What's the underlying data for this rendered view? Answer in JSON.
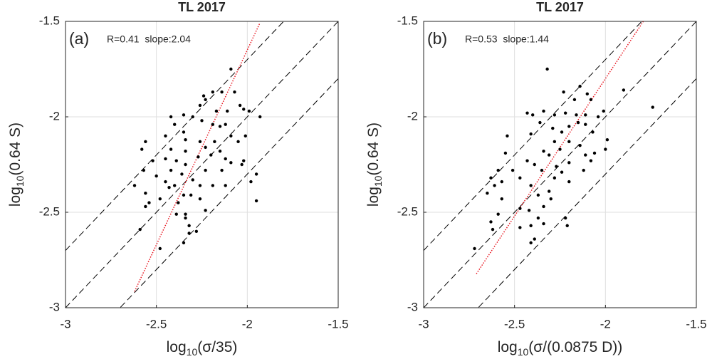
{
  "chart_data": [
    {
      "type": "scatter",
      "title": "TL 2017",
      "panel_label": "(a)",
      "annotation": "R=0.41  slope:2.04",
      "xlabel": {
        "text": "log",
        "sub": "10",
        "rest": "(σ/35)"
      },
      "ylabel": {
        "text": "log",
        "sub": "10",
        "rest": "(0.64 S)"
      },
      "xlim": [
        -3,
        -1.5
      ],
      "ylim": [
        -3,
        -1.5
      ],
      "xticks": [
        -3,
        -2.5,
        -2,
        -1.5
      ],
      "yticks": [
        -3,
        -2.5,
        -2,
        -1.5
      ],
      "grid": true,
      "reference_lines": [
        {
          "slope": 1,
          "intercept": 0.3
        },
        {
          "slope": 1,
          "intercept": 0
        },
        {
          "slope": 1,
          "intercept": -0.3
        }
      ],
      "fit": {
        "slope": 2.04,
        "intercept": 2.43,
        "x_range": [
          -2.62,
          -1.93
        ],
        "color": "#e8141e"
      },
      "color": "#000000",
      "x": [
        -2.09,
        -2.07,
        -2.14,
        -2.23,
        -2.26,
        -2.17,
        -2.11,
        -2.02,
        -1.99,
        -1.93,
        -2.3,
        -2.35,
        -2.42,
        -2.4,
        -2.35,
        -2.25,
        -2.19,
        -2.12,
        -2.09,
        -2.05,
        -2.01,
        -2.18,
        -2.26,
        -2.34,
        -2.42,
        -2.45,
        -2.52,
        -2.39,
        -2.34,
        -2.27,
        -2.23,
        -2.2,
        -2.15,
        -2.12,
        -2.23,
        -2.14,
        -2.09,
        -2.02,
        -1.95,
        -1.98,
        -2.34,
        -2.42,
        -2.45,
        -2.5,
        -2.4,
        -2.36,
        -2.3,
        -2.26,
        -2.19,
        -2.12,
        -2.26,
        -2.35,
        -2.38,
        -2.34,
        -2.39,
        -2.34,
        -2.32,
        -2.28,
        -2.32,
        -2.23,
        -2.48,
        -2.56,
        -2.54,
        -2.62,
        -2.56,
        -2.58,
        -2.57,
        -2.56,
        -2.59,
        -2.48,
        -2.35,
        -1.95,
        -2.03,
        -2.24,
        -2.19,
        -2.04,
        -2.43,
        -2.31,
        -2.45,
        -2.15
      ],
      "y": [
        -1.75,
        -1.87,
        -1.87,
        -1.91,
        -1.94,
        -1.97,
        -1.97,
        -1.96,
        -1.97,
        -2.0,
        -2.0,
        -1.99,
        -2.0,
        -2.04,
        -2.08,
        -2.02,
        -2.04,
        -2.04,
        -2.1,
        -2.13,
        -2.1,
        -2.13,
        -2.13,
        -2.12,
        -2.17,
        -2.22,
        -2.23,
        -2.23,
        -2.18,
        -2.21,
        -2.16,
        -2.2,
        -2.18,
        -2.22,
        -2.28,
        -2.28,
        -2.24,
        -2.23,
        -2.3,
        -2.34,
        -2.25,
        -2.28,
        -2.34,
        -2.31,
        -2.36,
        -2.3,
        -2.33,
        -2.36,
        -2.36,
        -2.36,
        -2.43,
        -2.41,
        -2.45,
        -2.51,
        -2.51,
        -2.53,
        -2.57,
        -2.6,
        -2.61,
        -2.49,
        -2.43,
        -2.4,
        -2.45,
        -2.36,
        -2.13,
        -2.17,
        -2.28,
        -2.47,
        -2.59,
        -2.69,
        -2.66,
        -2.44,
        -2.25,
        -1.89,
        -1.87,
        -1.94,
        -2.37,
        -2.41,
        -2.1,
        -2.05
      ]
    },
    {
      "type": "scatter",
      "title": "TL 2017",
      "panel_label": "(b)",
      "annotation": "R=0.53  slope:1.44",
      "xlabel": {
        "text": "log",
        "sub": "10",
        "rest": "(σ/(0.0875 D))"
      },
      "ylabel": {
        "text": "log",
        "sub": "10",
        "rest": "(0.64 S)"
      },
      "xlim": [
        -3,
        -1.5
      ],
      "ylim": [
        -3,
        -1.5
      ],
      "xticks": [
        -3,
        -2.5,
        -2,
        -1.5
      ],
      "yticks": [
        -3,
        -2.5,
        -2,
        -1.5
      ],
      "grid": true,
      "reference_lines": [
        {
          "slope": 1,
          "intercept": 0.3
        },
        {
          "slope": 1,
          "intercept": 0
        },
        {
          "slope": 1,
          "intercept": -0.3
        }
      ],
      "fit": {
        "slope": 1.44,
        "intercept": 1.08,
        "x_range": [
          -2.71,
          -1.79
        ],
        "color": "#e8141e"
      },
      "color": "#000000",
      "x": [
        -2.32,
        -2.23,
        -2.14,
        -1.9,
        -1.74,
        -2.1,
        -2.08,
        -2.17,
        -2.43,
        -2.4,
        -2.34,
        -2.28,
        -2.22,
        -2.16,
        -2.11,
        -2.04,
        -2.01,
        -2.36,
        -2.29,
        -2.24,
        -2.2,
        -2.15,
        -2.11,
        -2.07,
        -1.99,
        -2.41,
        -2.54,
        -2.55,
        -2.43,
        -2.34,
        -2.31,
        -2.25,
        -2.2,
        -2.14,
        -2.11,
        -2.06,
        -2.08,
        -2.2,
        -2.27,
        -2.35,
        -2.39,
        -2.59,
        -2.57,
        -2.63,
        -2.61,
        -2.65,
        -2.57,
        -2.47,
        -2.41,
        -2.37,
        -2.31,
        -2.28,
        -2.24,
        -2.34,
        -2.42,
        -2.47,
        -2.37,
        -2.34,
        -2.41,
        -2.47,
        -2.39,
        -2.41,
        -2.22,
        -2.21,
        -2.3,
        -2.63,
        -2.62,
        -2.59,
        -2.72,
        -2.51,
        -2.28,
        -2.12,
        -2.2,
        -2.0
      ],
      "y": [
        -1.75,
        -1.87,
        -1.84,
        -1.86,
        -1.95,
        -1.88,
        -1.91,
        -1.91,
        -1.98,
        -1.99,
        -1.97,
        -1.99,
        -1.98,
        -1.99,
        -1.99,
        -2.0,
        -1.97,
        -2.03,
        -2.06,
        -2.08,
        -2.05,
        -2.03,
        -2.04,
        -2.08,
        -2.12,
        -2.09,
        -2.1,
        -2.19,
        -2.23,
        -2.18,
        -2.2,
        -2.17,
        -2.13,
        -2.15,
        -2.2,
        -2.19,
        -2.23,
        -2.24,
        -2.26,
        -2.28,
        -2.25,
        -2.28,
        -2.34,
        -2.32,
        -2.36,
        -2.4,
        -2.43,
        -2.32,
        -2.36,
        -2.41,
        -2.39,
        -2.32,
        -2.29,
        -2.47,
        -2.49,
        -2.48,
        -2.53,
        -2.56,
        -2.57,
        -2.58,
        -2.64,
        -2.66,
        -2.53,
        -2.57,
        -2.43,
        -2.55,
        -2.59,
        -2.51,
        -2.69,
        -2.28,
        -2.13,
        -2.28,
        -2.34,
        -2.17
      ]
    }
  ]
}
